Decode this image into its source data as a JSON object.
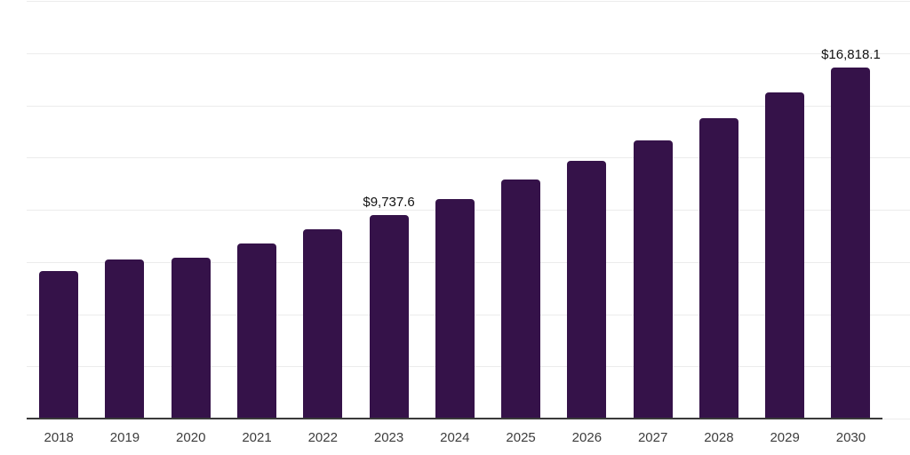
{
  "chart_data": {
    "type": "bar",
    "title": "",
    "xlabel": "",
    "ylabel": "",
    "categories": [
      "2018",
      "2019",
      "2020",
      "2021",
      "2022",
      "2023",
      "2024",
      "2025",
      "2026",
      "2027",
      "2028",
      "2029",
      "2030"
    ],
    "values": [
      7060,
      7600,
      7720,
      8400,
      9080,
      9737.6,
      10530,
      11430,
      12320,
      13300,
      14400,
      15600,
      16818.1
    ],
    "point_labels": [
      "",
      "",
      "",
      "",
      "",
      "$9,737.6",
      "",
      "",
      "",
      "",
      "",
      "",
      "$16,818.1"
    ],
    "ylim": [
      0,
      20000
    ],
    "gridline_step": 2500,
    "grid": true,
    "legend": "none",
    "colors": {
      "bar": "#351249",
      "gridline": "#ececec",
      "axis_line": "#3a3a3a",
      "tick_label": "#3d3d3d",
      "value_label": "#121212",
      "background": "#ffffff"
    }
  }
}
